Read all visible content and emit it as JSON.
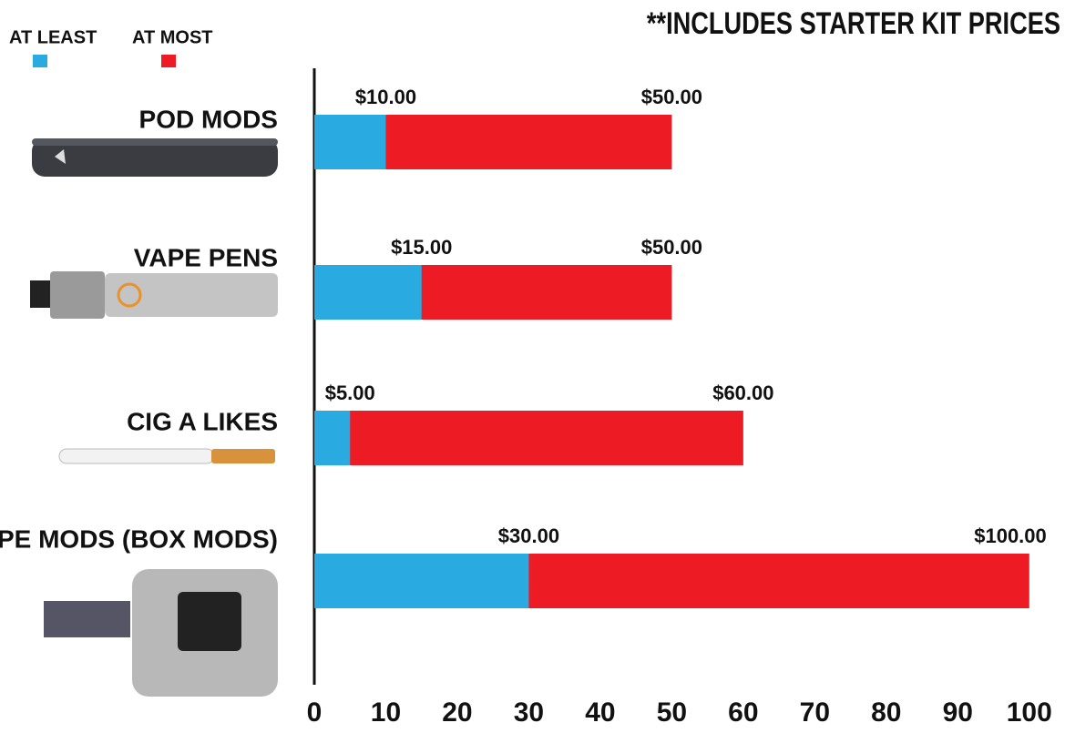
{
  "chart_data": {
    "type": "bar",
    "orientation": "horizontal",
    "title": "**INCLUDES STARTER KIT PRICES",
    "categories": [
      "POD MODS",
      "VAPE PENS",
      "CIG A LIKES",
      "VAPE MODS (BOX MODS)"
    ],
    "series": [
      {
        "name": "AT MOST",
        "color": "#ed1c24",
        "values": [
          50,
          50,
          60,
          100
        ],
        "value_labels": [
          "$50.00",
          "$50.00",
          "$60.00",
          "$100.00"
        ]
      },
      {
        "name": "AT LEAST",
        "color": "#29abe2",
        "values": [
          10,
          15,
          5,
          30
        ],
        "value_labels": [
          "$10.00",
          "$15.00",
          "$5.00",
          "$30.00"
        ]
      }
    ],
    "xlim": [
      0,
      105
    ],
    "xticks": [
      0,
      10,
      20,
      30,
      40,
      50,
      60,
      70,
      80,
      90,
      100
    ]
  }
}
